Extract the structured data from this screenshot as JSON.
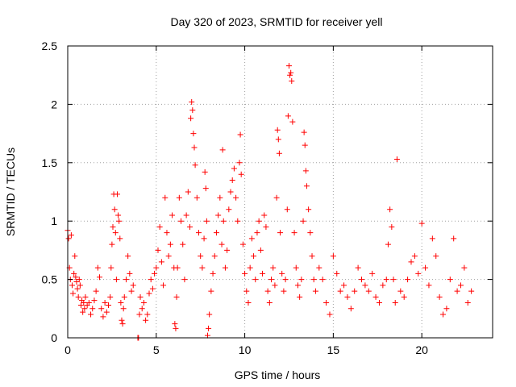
{
  "chart_data": {
    "type": "scatter",
    "title": "Day 320 of 2023, SRMTID for receiver yell",
    "xlabel": "GPS time / hours",
    "ylabel": "SRMTID / TECUs",
    "xlim": [
      0,
      24
    ],
    "ylim": [
      0,
      2.5
    ],
    "xticks": [
      0,
      5,
      10,
      15,
      20
    ],
    "xtick_labels": [
      "0",
      "5",
      "10",
      "15",
      "20"
    ],
    "yticks": [
      0,
      0.5,
      1,
      1.5,
      2,
      2.5
    ],
    "ytick_labels": [
      "0",
      "0.5",
      "1",
      "1.5",
      "2",
      "2.5"
    ],
    "grid": true,
    "marker": "+",
    "color": "#ff0000",
    "series": [
      {
        "name": "SRMTID",
        "points": [
          [
            0.0,
            0.92
          ],
          [
            0.05,
            0.85
          ],
          [
            0.1,
            0.6
          ],
          [
            0.15,
            0.5
          ],
          [
            0.2,
            0.88
          ],
          [
            0.25,
            0.45
          ],
          [
            0.3,
            0.38
          ],
          [
            0.35,
            0.55
          ],
          [
            0.4,
            0.7
          ],
          [
            0.45,
            0.52
          ],
          [
            0.5,
            0.48
          ],
          [
            0.55,
            0.42
          ],
          [
            0.6,
            0.35
          ],
          [
            0.65,
            0.5
          ],
          [
            0.7,
            0.45
          ],
          [
            0.75,
            0.28
          ],
          [
            0.8,
            0.32
          ],
          [
            0.85,
            0.22
          ],
          [
            0.9,
            0.3
          ],
          [
            0.95,
            0.25
          ],
          [
            1.0,
            0.35
          ],
          [
            1.1,
            0.28
          ],
          [
            1.2,
            0.3
          ],
          [
            1.3,
            0.2
          ],
          [
            1.4,
            0.25
          ],
          [
            1.5,
            0.32
          ],
          [
            1.6,
            0.4
          ],
          [
            1.7,
            0.6
          ],
          [
            1.8,
            0.52
          ],
          [
            1.9,
            0.25
          ],
          [
            2.0,
            0.18
          ],
          [
            2.1,
            0.3
          ],
          [
            2.2,
            0.22
          ],
          [
            2.3,
            0.28
          ],
          [
            2.4,
            0.35
          ],
          [
            2.45,
            0.6
          ],
          [
            2.5,
            0.8
          ],
          [
            2.55,
            0.95
          ],
          [
            2.6,
            1.23
          ],
          [
            2.65,
            1.1
          ],
          [
            2.7,
            0.9
          ],
          [
            2.75,
            0.5
          ],
          [
            2.8,
            1.23
          ],
          [
            2.85,
            1.05
          ],
          [
            2.9,
            1.0
          ],
          [
            2.95,
            0.85
          ],
          [
            3.0,
            0.3
          ],
          [
            3.05,
            0.15
          ],
          [
            3.1,
            0.12
          ],
          [
            3.15,
            0.25
          ],
          [
            3.2,
            0.35
          ],
          [
            3.3,
            0.5
          ],
          [
            3.4,
            0.7
          ],
          [
            3.5,
            0.55
          ],
          [
            3.6,
            0.4
          ],
          [
            3.7,
            0.45
          ],
          [
            3.96,
            0.0
          ],
          [
            4.0,
            0.0
          ],
          [
            4.05,
            0.2
          ],
          [
            4.1,
            0.35
          ],
          [
            4.2,
            0.25
          ],
          [
            4.3,
            0.3
          ],
          [
            4.4,
            0.15
          ],
          [
            4.5,
            0.2
          ],
          [
            4.6,
            0.38
          ],
          [
            4.7,
            0.5
          ],
          [
            4.8,
            0.42
          ],
          [
            4.9,
            0.55
          ],
          [
            5.0,
            0.6
          ],
          [
            5.1,
            0.75
          ],
          [
            5.2,
            0.95
          ],
          [
            5.3,
            0.65
          ],
          [
            5.4,
            0.45
          ],
          [
            5.5,
            1.2
          ],
          [
            5.6,
            0.9
          ],
          [
            5.7,
            0.7
          ],
          [
            5.8,
            0.8
          ],
          [
            5.9,
            1.05
          ],
          [
            6.0,
            0.6
          ],
          [
            6.05,
            0.12
          ],
          [
            6.1,
            0.08
          ],
          [
            6.15,
            0.35
          ],
          [
            6.2,
            0.6
          ],
          [
            6.3,
            1.2
          ],
          [
            6.4,
            1.0
          ],
          [
            6.5,
            0.8
          ],
          [
            6.6,
            0.5
          ],
          [
            6.7,
            1.05
          ],
          [
            6.8,
            1.25
          ],
          [
            6.9,
            0.95
          ],
          [
            6.95,
            1.88
          ],
          [
            7.0,
            2.02
          ],
          [
            7.05,
            1.95
          ],
          [
            7.1,
            1.75
          ],
          [
            7.15,
            1.63
          ],
          [
            7.2,
            1.48
          ],
          [
            7.3,
            1.2
          ],
          [
            7.4,
            0.9
          ],
          [
            7.5,
            0.7
          ],
          [
            7.6,
            0.6
          ],
          [
            7.7,
            0.85
          ],
          [
            7.75,
            1.42
          ],
          [
            7.8,
            1.28
          ],
          [
            7.85,
            1.0
          ],
          [
            7.9,
            0.02
          ],
          [
            7.95,
            0.08
          ],
          [
            8.0,
            0.2
          ],
          [
            8.1,
            0.4
          ],
          [
            8.2,
            0.55
          ],
          [
            8.3,
            0.7
          ],
          [
            8.4,
            0.9
          ],
          [
            8.5,
            1.05
          ],
          [
            8.6,
            1.2
          ],
          [
            8.7,
            0.8
          ],
          [
            8.75,
            1.61
          ],
          [
            8.8,
            1.0
          ],
          [
            8.9,
            0.6
          ],
          [
            9.0,
            0.75
          ],
          [
            9.1,
            1.1
          ],
          [
            9.2,
            1.25
          ],
          [
            9.3,
            1.35
          ],
          [
            9.4,
            1.45
          ],
          [
            9.5,
            1.2
          ],
          [
            9.6,
            1.0
          ],
          [
            9.7,
            1.5
          ],
          [
            9.75,
            1.74
          ],
          [
            9.8,
            1.4
          ],
          [
            9.9,
            0.8
          ],
          [
            10.0,
            0.55
          ],
          [
            10.1,
            0.4
          ],
          [
            10.2,
            0.3
          ],
          [
            10.3,
            0.6
          ],
          [
            10.4,
            0.85
          ],
          [
            10.5,
            0.7
          ],
          [
            10.6,
            0.5
          ],
          [
            10.7,
            0.9
          ],
          [
            10.8,
            1.0
          ],
          [
            10.9,
            0.75
          ],
          [
            11.0,
            0.55
          ],
          [
            11.1,
            1.05
          ],
          [
            11.2,
            0.95
          ],
          [
            11.3,
            0.4
          ],
          [
            11.4,
            0.3
          ],
          [
            11.5,
            0.5
          ],
          [
            11.6,
            0.6
          ],
          [
            11.7,
            0.45
          ],
          [
            11.8,
            1.2
          ],
          [
            11.85,
            1.78
          ],
          [
            11.9,
            1.7
          ],
          [
            11.95,
            1.58
          ],
          [
            12.0,
            0.9
          ],
          [
            12.1,
            0.55
          ],
          [
            12.2,
            0.4
          ],
          [
            12.3,
            0.5
          ],
          [
            12.4,
            1.1
          ],
          [
            12.45,
            1.9
          ],
          [
            12.5,
            2.33
          ],
          [
            12.55,
            2.25
          ],
          [
            12.6,
            2.27
          ],
          [
            12.65,
            2.2
          ],
          [
            12.7,
            1.85
          ],
          [
            12.8,
            0.9
          ],
          [
            12.9,
            0.6
          ],
          [
            13.0,
            0.45
          ],
          [
            13.1,
            0.35
          ],
          [
            13.2,
            0.5
          ],
          [
            13.3,
            1.0
          ],
          [
            13.35,
            1.76
          ],
          [
            13.4,
            1.65
          ],
          [
            13.45,
            1.43
          ],
          [
            13.5,
            1.3
          ],
          [
            13.6,
            1.1
          ],
          [
            13.7,
            0.9
          ],
          [
            13.8,
            0.7
          ],
          [
            13.9,
            0.5
          ],
          [
            14.0,
            0.4
          ],
          [
            14.2,
            0.6
          ],
          [
            14.4,
            0.5
          ],
          [
            14.6,
            0.3
          ],
          [
            14.8,
            0.2
          ],
          [
            15.0,
            0.7
          ],
          [
            15.2,
            0.55
          ],
          [
            15.4,
            0.4
          ],
          [
            15.6,
            0.45
          ],
          [
            15.8,
            0.35
          ],
          [
            16.0,
            0.25
          ],
          [
            16.2,
            0.4
          ],
          [
            16.4,
            0.6
          ],
          [
            16.6,
            0.5
          ],
          [
            16.8,
            0.45
          ],
          [
            17.0,
            0.4
          ],
          [
            17.2,
            0.55
          ],
          [
            17.4,
            0.35
          ],
          [
            17.6,
            0.3
          ],
          [
            17.8,
            0.45
          ],
          [
            18.0,
            0.5
          ],
          [
            18.1,
            0.8
          ],
          [
            18.2,
            1.1
          ],
          [
            18.3,
            0.95
          ],
          [
            18.4,
            0.5
          ],
          [
            18.5,
            0.3
          ],
          [
            18.6,
            1.53
          ],
          [
            18.8,
            0.4
          ],
          [
            19.0,
            0.35
          ],
          [
            19.2,
            0.5
          ],
          [
            19.4,
            0.65
          ],
          [
            19.6,
            0.7
          ],
          [
            19.8,
            0.55
          ],
          [
            20.0,
            0.98
          ],
          [
            20.2,
            0.6
          ],
          [
            20.4,
            0.45
          ],
          [
            20.6,
            0.85
          ],
          [
            20.8,
            0.7
          ],
          [
            21.0,
            0.35
          ],
          [
            21.2,
            0.2
          ],
          [
            21.4,
            0.25
          ],
          [
            21.6,
            0.5
          ],
          [
            21.8,
            0.85
          ],
          [
            22.0,
            0.4
          ],
          [
            22.2,
            0.45
          ],
          [
            22.4,
            0.6
          ],
          [
            22.6,
            0.3
          ],
          [
            22.8,
            0.4
          ]
        ]
      }
    ]
  }
}
